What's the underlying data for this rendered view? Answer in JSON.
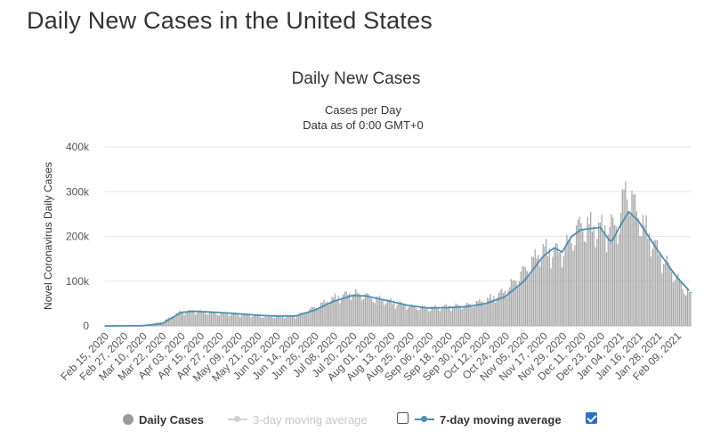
{
  "page": {
    "title": "Daily New Cases in the United States"
  },
  "colors": {
    "bars": "#a8a8a8",
    "moving_average": "#4a90b0",
    "grid": "#e6e6e6",
    "check": "#2d6fc4"
  },
  "chart_data": {
    "type": "bar",
    "title": "Daily New Cases",
    "subtitle_lines": [
      "Cases per Day",
      "Data as of 0:00 GMT+0"
    ],
    "xlabel": "",
    "ylabel": "Novel Coronavirus Daily Cases",
    "ylim": [
      0,
      400000
    ],
    "y_ticks": [
      {
        "value": 0,
        "label": "0"
      },
      {
        "value": 100000,
        "label": "100k"
      },
      {
        "value": 200000,
        "label": "200k"
      },
      {
        "value": 300000,
        "label": "300k"
      },
      {
        "value": 400000,
        "label": "400k"
      }
    ],
    "x_range": [
      "2020-02-15",
      "2021-02-18"
    ],
    "x_ticks": [
      "Feb 15, 2020",
      "Feb 27, 2020",
      "Mar 10, 2020",
      "Mar 22, 2020",
      "Apr 03, 2020",
      "Apr 15, 2020",
      "Apr 27, 2020",
      "May 09, 2020",
      "May 21, 2020",
      "Jun 02, 2020",
      "Jun 14, 2020",
      "Jun 26, 2020",
      "Jul 08, 2020",
      "Jul 20, 2020",
      "Aug 01, 2020",
      "Aug 13, 2020",
      "Aug 25, 2020",
      "Sep 06, 2020",
      "Sep 18, 2020",
      "Sep 30, 2020",
      "Oct 12, 2020",
      "Oct 24, 2020",
      "Nov 05, 2020",
      "Nov 17, 2020",
      "Nov 29, 2020",
      "Dec 11, 2020",
      "Dec 23, 2020",
      "Jan 04, 2021",
      "Jan 16, 2021",
      "Jan 28, 2021",
      "Feb 09, 2021"
    ],
    "series": [
      {
        "name": "Daily Cases",
        "type": "bar",
        "visible": true,
        "values": [
          {
            "x": "2020-02-15",
            "y": 0
          },
          {
            "x": "2020-03-10",
            "y": 1000
          },
          {
            "x": "2020-03-22",
            "y": 9000
          },
          {
            "x": "2020-04-03",
            "y": 31000
          },
          {
            "x": "2020-04-15",
            "y": 31000
          },
          {
            "x": "2020-04-27",
            "y": 27000
          },
          {
            "x": "2020-05-09",
            "y": 25000
          },
          {
            "x": "2020-05-21",
            "y": 22000
          },
          {
            "x": "2020-06-02",
            "y": 20000
          },
          {
            "x": "2020-06-14",
            "y": 21000
          },
          {
            "x": "2020-06-26",
            "y": 40000
          },
          {
            "x": "2020-07-08",
            "y": 60000
          },
          {
            "x": "2020-07-20",
            "y": 72000
          },
          {
            "x": "2020-08-01",
            "y": 62000
          },
          {
            "x": "2020-08-13",
            "y": 52000
          },
          {
            "x": "2020-08-25",
            "y": 42000
          },
          {
            "x": "2020-09-06",
            "y": 38000
          },
          {
            "x": "2020-09-18",
            "y": 42000
          },
          {
            "x": "2020-09-30",
            "y": 45000
          },
          {
            "x": "2020-10-12",
            "y": 55000
          },
          {
            "x": "2020-10-24",
            "y": 75000
          },
          {
            "x": "2020-11-05",
            "y": 120000
          },
          {
            "x": "2020-11-17",
            "y": 165000
          },
          {
            "x": "2020-11-29",
            "y": 160000
          },
          {
            "x": "2020-12-11",
            "y": 220000
          },
          {
            "x": "2020-12-23",
            "y": 210000
          },
          {
            "x": "2021-01-04",
            "y": 220000
          },
          {
            "x": "2021-01-08",
            "y": 305000
          },
          {
            "x": "2021-01-16",
            "y": 240000
          },
          {
            "x": "2021-01-28",
            "y": 165000
          },
          {
            "x": "2021-02-09",
            "y": 105000
          },
          {
            "x": "2021-02-18",
            "y": 65000
          }
        ]
      },
      {
        "name": "3-day moving average",
        "type": "line",
        "visible": false,
        "values": []
      },
      {
        "name": "7-day moving average",
        "type": "line",
        "visible": true,
        "values": [
          {
            "x": "2020-02-15",
            "y": 0
          },
          {
            "x": "2020-03-10",
            "y": 500
          },
          {
            "x": "2020-03-22",
            "y": 5000
          },
          {
            "x": "2020-04-03",
            "y": 30000
          },
          {
            "x": "2020-04-10",
            "y": 33000
          },
          {
            "x": "2020-04-27",
            "y": 30000
          },
          {
            "x": "2020-05-09",
            "y": 27000
          },
          {
            "x": "2020-05-21",
            "y": 24000
          },
          {
            "x": "2020-06-02",
            "y": 22000
          },
          {
            "x": "2020-06-14",
            "y": 22000
          },
          {
            "x": "2020-06-26",
            "y": 35000
          },
          {
            "x": "2020-07-08",
            "y": 55000
          },
          {
            "x": "2020-07-20",
            "y": 68000
          },
          {
            "x": "2020-07-28",
            "y": 67000
          },
          {
            "x": "2020-08-13",
            "y": 55000
          },
          {
            "x": "2020-08-25",
            "y": 45000
          },
          {
            "x": "2020-09-06",
            "y": 40000
          },
          {
            "x": "2020-09-18",
            "y": 41000
          },
          {
            "x": "2020-09-30",
            "y": 43000
          },
          {
            "x": "2020-10-12",
            "y": 50000
          },
          {
            "x": "2020-10-24",
            "y": 65000
          },
          {
            "x": "2020-11-05",
            "y": 100000
          },
          {
            "x": "2020-11-17",
            "y": 155000
          },
          {
            "x": "2020-11-24",
            "y": 175000
          },
          {
            "x": "2020-11-29",
            "y": 165000
          },
          {
            "x": "2020-12-05",
            "y": 200000
          },
          {
            "x": "2020-12-11",
            "y": 215000
          },
          {
            "x": "2020-12-23",
            "y": 220000
          },
          {
            "x": "2020-12-30",
            "y": 185000
          },
          {
            "x": "2021-01-04",
            "y": 220000
          },
          {
            "x": "2021-01-10",
            "y": 255000
          },
          {
            "x": "2021-01-16",
            "y": 235000
          },
          {
            "x": "2021-01-28",
            "y": 170000
          },
          {
            "x": "2021-02-09",
            "y": 110000
          },
          {
            "x": "2021-02-18",
            "y": 75000
          }
        ]
      }
    ],
    "legend": {
      "placement": "bottom",
      "items": [
        {
          "label": "Daily Cases",
          "symbol": "circle",
          "active": true
        },
        {
          "label": "3-day moving average",
          "symbol": "line-dot",
          "active": false,
          "checkbox_checked": false
        },
        {
          "label": "7-day moving average",
          "symbol": "line-dot",
          "active": true,
          "checkbox_checked": true
        }
      ]
    },
    "grid": true
  }
}
